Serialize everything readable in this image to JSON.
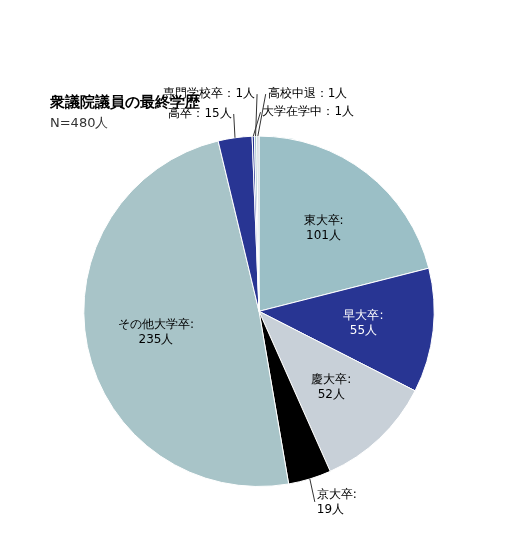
{
  "chart_data": {
    "type": "pie",
    "title": "衆議院議員の最終学歴",
    "subtitle": "N=480人",
    "categories": [
      "東大卒:\n101人",
      "早大卒:\n55人",
      "慶大卒:\n52人",
      "京大卒:\n19人",
      "その他大学卒:\n235人",
      "高卒：15人",
      "大学在学中：1人",
      "専門学校卒：1人",
      "高校中退：1人"
    ],
    "values": [
      101,
      55,
      52,
      19,
      235,
      15,
      1,
      1,
      1
    ],
    "colors": [
      "#9bbfc6",
      "#283593",
      "#c8d0d8",
      "#000000",
      "#a8c4c8",
      "#283593",
      "#283593",
      "#9bbfc6",
      "#c8d0d8"
    ]
  }
}
